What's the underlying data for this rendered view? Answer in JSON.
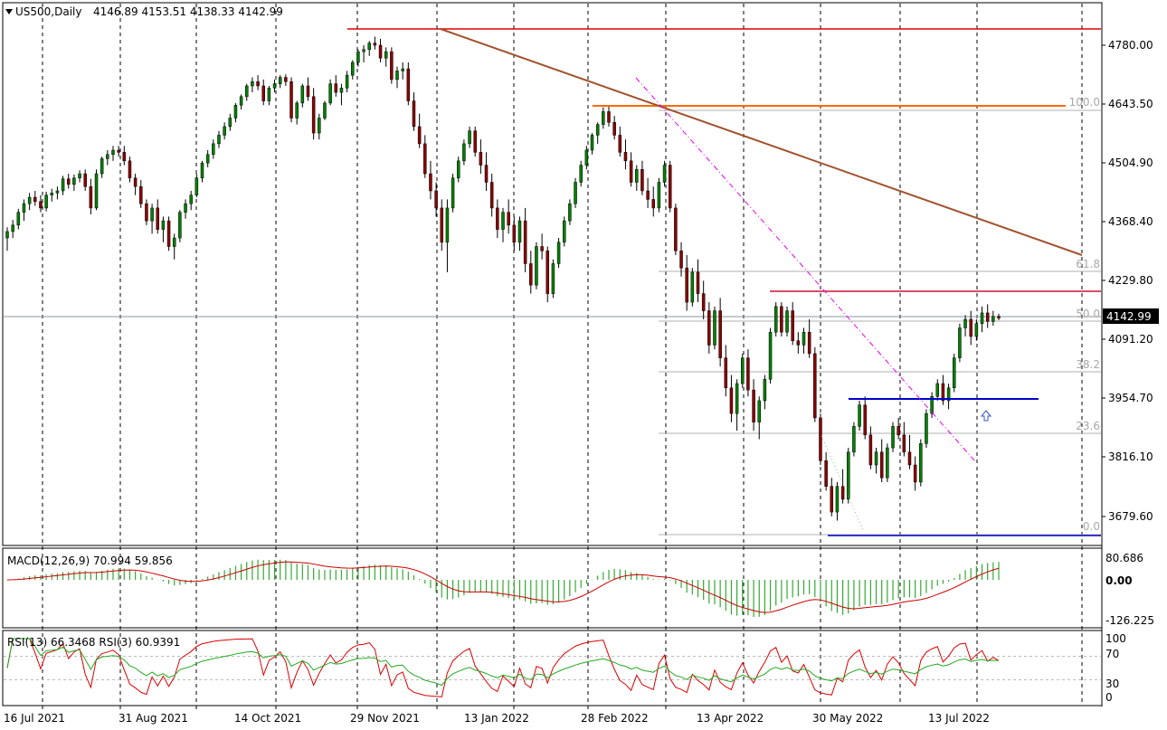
{
  "header": {
    "symbol": "US500,Daily",
    "ohlc": "4146.89 4153.51 4138.33 4142.99"
  },
  "price_axis": {
    "ticks": [
      "4780.00",
      "4643.50",
      "4504.90",
      "4368.40",
      "4229.80",
      "4091.20",
      "3954.70",
      "3816.10",
      "3679.60"
    ],
    "current_price": "4142.99"
  },
  "time_axis": {
    "labels": [
      "16 Jul 2021",
      "31 Aug 2021",
      "14 Oct 2021",
      "29 Nov 2021",
      "13 Jan 2022",
      "28 Feb 2022",
      "13 Apr 2022",
      "30 May 2022",
      "13 Jul 2022"
    ]
  },
  "fibonacci": {
    "levels": [
      "100.0",
      "61.8",
      "50.0",
      "38.2",
      "23.6",
      "0.0"
    ]
  },
  "macd": {
    "title": "MACD(12,26,9) 70.994 59.856",
    "ticks": [
      "80.686",
      "0.00",
      "-126.225"
    ]
  },
  "rsi": {
    "title": "RSI(13) 66.3468  RSI(3) 60.9391",
    "ticks": [
      "100",
      "70",
      "30",
      "0"
    ]
  },
  "colors": {
    "bull_candle": "#008000",
    "bear_candle": "#8b0000",
    "red_line": "#e00000",
    "orange_line": "#ff6a00",
    "trend_line": "#a0522d",
    "blue_line": "#0000cc",
    "magenta_dash": "#ee00ee",
    "macd_hist": "#33aa33",
    "macd_signal": "#cc0000",
    "rsi_fast": "#dd0000",
    "rsi_slow": "#22aa22"
  },
  "chart_data": {
    "type": "candlestick",
    "series": [
      {
        "name": "US500",
        "values": [
          [
            4330,
            4355,
            4300,
            4345
          ],
          [
            4345,
            4372,
            4330,
            4360
          ],
          [
            4360,
            4398,
            4350,
            4390
          ],
          [
            4390,
            4420,
            4370,
            4410
          ],
          [
            4410,
            4435,
            4395,
            4425
          ],
          [
            4425,
            4440,
            4405,
            4415
          ],
          [
            4415,
            4430,
            4390,
            4400
          ],
          [
            4400,
            4438,
            4392,
            4430
          ],
          [
            4430,
            4445,
            4415,
            4435
          ],
          [
            4435,
            4450,
            4420,
            4440
          ],
          [
            4440,
            4475,
            4430,
            4468
          ],
          [
            4468,
            4480,
            4445,
            4455
          ],
          [
            4455,
            4478,
            4440,
            4470
          ],
          [
            4470,
            4488,
            4460,
            4480
          ],
          [
            4480,
            4490,
            4440,
            4450
          ],
          [
            4450,
            4468,
            4385,
            4400
          ],
          [
            4400,
            4490,
            4395,
            4480
          ],
          [
            4480,
            4520,
            4470,
            4515
          ],
          [
            4515,
            4535,
            4500,
            4525
          ],
          [
            4525,
            4545,
            4510,
            4535
          ],
          [
            4535,
            4545,
            4520,
            4530
          ],
          [
            4530,
            4545,
            4500,
            4510
          ],
          [
            4510,
            4520,
            4460,
            4470
          ],
          [
            4470,
            4480,
            4430,
            4450
          ],
          [
            4450,
            4465,
            4400,
            4410
          ],
          [
            4410,
            4420,
            4360,
            4370
          ],
          [
            4370,
            4410,
            4340,
            4400
          ],
          [
            4400,
            4420,
            4340,
            4350
          ],
          [
            4350,
            4380,
            4320,
            4370
          ],
          [
            4370,
            4380,
            4300,
            4310
          ],
          [
            4310,
            4340,
            4280,
            4330
          ],
          [
            4330,
            4395,
            4320,
            4390
          ],
          [
            4390,
            4420,
            4375,
            4410
          ],
          [
            4410,
            4440,
            4395,
            4430
          ],
          [
            4430,
            4480,
            4425,
            4470
          ],
          [
            4470,
            4510,
            4460,
            4505
          ],
          [
            4505,
            4535,
            4495,
            4525
          ],
          [
            4525,
            4560,
            4515,
            4550
          ],
          [
            4550,
            4580,
            4540,
            4570
          ],
          [
            4570,
            4600,
            4560,
            4590
          ],
          [
            4590,
            4620,
            4580,
            4610
          ],
          [
            4610,
            4645,
            4600,
            4640
          ],
          [
            4640,
            4665,
            4630,
            4660
          ],
          [
            4660,
            4690,
            4650,
            4685
          ],
          [
            4685,
            4705,
            4670,
            4695
          ],
          [
            4695,
            4710,
            4675,
            4685
          ],
          [
            4685,
            4700,
            4640,
            4650
          ],
          [
            4650,
            4685,
            4640,
            4680
          ],
          [
            4680,
            4700,
            4670,
            4690
          ],
          [
            4690,
            4710,
            4680,
            4705
          ],
          [
            4705,
            4712,
            4685,
            4695
          ],
          [
            4695,
            4705,
            4600,
            4610
          ],
          [
            4610,
            4650,
            4595,
            4645
          ],
          [
            4645,
            4690,
            4635,
            4685
          ],
          [
            4685,
            4705,
            4650,
            4660
          ],
          [
            4660,
            4680,
            4560,
            4575
          ],
          [
            4575,
            4620,
            4560,
            4610
          ],
          [
            4610,
            4650,
            4605,
            4645
          ],
          [
            4645,
            4700,
            4640,
            4690
          ],
          [
            4690,
            4710,
            4660,
            4670
          ],
          [
            4670,
            4690,
            4640,
            4680
          ],
          [
            4680,
            4720,
            4670,
            4710
          ],
          [
            4710,
            4745,
            4700,
            4740
          ],
          [
            4740,
            4770,
            4730,
            4765
          ],
          [
            4765,
            4780,
            4740,
            4770
          ],
          [
            4770,
            4790,
            4755,
            4785
          ],
          [
            4785,
            4800,
            4770,
            4780
          ],
          [
            4780,
            4795,
            4740,
            4750
          ],
          [
            4750,
            4775,
            4730,
            4765
          ],
          [
            4765,
            4775,
            4690,
            4700
          ],
          [
            4700,
            4730,
            4680,
            4720
          ],
          [
            4720,
            4740,
            4700,
            4725
          ],
          [
            4725,
            4740,
            4640,
            4650
          ],
          [
            4650,
            4670,
            4580,
            4590
          ],
          [
            4590,
            4620,
            4540,
            4550
          ],
          [
            4550,
            4570,
            4470,
            4480
          ],
          [
            4480,
            4510,
            4420,
            4440
          ],
          [
            4440,
            4460,
            4380,
            4400
          ],
          [
            4400,
            4420,
            4300,
            4320
          ],
          [
            4320,
            4420,
            4250,
            4400
          ],
          [
            4400,
            4480,
            4390,
            4470
          ],
          [
            4470,
            4520,
            4460,
            4510
          ],
          [
            4510,
            4560,
            4500,
            4550
          ],
          [
            4550,
            4590,
            4540,
            4580
          ],
          [
            4580,
            4590,
            4520,
            4530
          ],
          [
            4530,
            4560,
            4480,
            4500
          ],
          [
            4500,
            4530,
            4440,
            4460
          ],
          [
            4460,
            4480,
            4380,
            4400
          ],
          [
            4400,
            4420,
            4330,
            4350
          ],
          [
            4350,
            4400,
            4320,
            4390
          ],
          [
            4390,
            4420,
            4340,
            4360
          ],
          [
            4360,
            4380,
            4300,
            4320
          ],
          [
            4320,
            4380,
            4300,
            4370
          ],
          [
            4370,
            4400,
            4250,
            4270
          ],
          [
            4270,
            4300,
            4200,
            4220
          ],
          [
            4220,
            4320,
            4210,
            4310
          ],
          [
            4310,
            4340,
            4280,
            4300
          ],
          [
            4300,
            4310,
            4180,
            4200
          ],
          [
            4200,
            4280,
            4190,
            4270
          ],
          [
            4270,
            4330,
            4260,
            4320
          ],
          [
            4320,
            4380,
            4310,
            4370
          ],
          [
            4370,
            4420,
            4360,
            4410
          ],
          [
            4410,
            4470,
            4400,
            4460
          ],
          [
            4460,
            4510,
            4450,
            4500
          ],
          [
            4500,
            4545,
            4490,
            4535
          ],
          [
            4535,
            4575,
            4525,
            4570
          ],
          [
            4570,
            4600,
            4550,
            4595
          ],
          [
            4595,
            4635,
            4585,
            4625
          ],
          [
            4625,
            4637,
            4590,
            4600
          ],
          [
            4600,
            4615,
            4560,
            4570
          ],
          [
            4570,
            4590,
            4520,
            4530
          ],
          [
            4530,
            4560,
            4490,
            4510
          ],
          [
            4510,
            4530,
            4450,
            4460
          ],
          [
            4460,
            4500,
            4440,
            4490
          ],
          [
            4490,
            4510,
            4430,
            4440
          ],
          [
            4440,
            4470,
            4400,
            4420
          ],
          [
            4420,
            4450,
            4380,
            4400
          ],
          [
            4400,
            4470,
            4390,
            4460
          ],
          [
            4460,
            4510,
            4450,
            4500
          ],
          [
            4500,
            4510,
            4390,
            4400
          ],
          [
            4400,
            4410,
            4290,
            4300
          ],
          [
            4300,
            4320,
            4240,
            4260
          ],
          [
            4260,
            4290,
            4160,
            4180
          ],
          [
            4180,
            4260,
            4170,
            4250
          ],
          [
            4250,
            4280,
            4180,
            4200
          ],
          [
            4200,
            4230,
            4140,
            4160
          ],
          [
            4160,
            4180,
            4060,
            4080
          ],
          [
            4080,
            4170,
            4070,
            4160
          ],
          [
            4160,
            4190,
            4030,
            4050
          ],
          [
            4050,
            4080,
            3960,
            3980
          ],
          [
            3980,
            4010,
            3900,
            3920
          ],
          [
            3920,
            4000,
            3880,
            3990
          ],
          [
            3990,
            4060,
            3980,
            4050
          ],
          [
            4050,
            4070,
            3960,
            3975
          ],
          [
            3975,
            4000,
            3880,
            3900
          ],
          [
            3900,
            3960,
            3860,
            3950
          ],
          [
            3950,
            4010,
            3930,
            4000
          ],
          [
            4000,
            4120,
            3990,
            4110
          ],
          [
            4110,
            4180,
            4100,
            4170
          ],
          [
            4170,
            4180,
            4100,
            4110
          ],
          [
            4110,
            4170,
            4100,
            4160
          ],
          [
            4160,
            4180,
            4080,
            4090
          ],
          [
            4090,
            4110,
            4060,
            4080
          ],
          [
            4080,
            4120,
            4060,
            4110
          ],
          [
            4110,
            4140,
            4050,
            4060
          ],
          [
            4060,
            4075,
            3900,
            3910
          ],
          [
            3910,
            3920,
            3800,
            3810
          ],
          [
            3810,
            3830,
            3740,
            3750
          ],
          [
            3750,
            3770,
            3680,
            3690
          ],
          [
            3690,
            3760,
            3670,
            3750
          ],
          [
            3750,
            3790,
            3710,
            3720
          ],
          [
            3720,
            3840,
            3710,
            3830
          ],
          [
            3830,
            3900,
            3820,
            3890
          ],
          [
            3890,
            3950,
            3880,
            3940
          ],
          [
            3940,
            3960,
            3860,
            3870
          ],
          [
            3870,
            3890,
            3790,
            3800
          ],
          [
            3800,
            3840,
            3780,
            3830
          ],
          [
            3830,
            3860,
            3760,
            3770
          ],
          [
            3770,
            3850,
            3760,
            3840
          ],
          [
            3840,
            3900,
            3830,
            3890
          ],
          [
            3890,
            3910,
            3860,
            3870
          ],
          [
            3870,
            3900,
            3820,
            3830
          ],
          [
            3830,
            3870,
            3790,
            3800
          ],
          [
            3800,
            3820,
            3740,
            3760
          ],
          [
            3760,
            3860,
            3750,
            3850
          ],
          [
            3850,
            3930,
            3840,
            3920
          ],
          [
            3920,
            3970,
            3910,
            3960
          ],
          [
            3960,
            4000,
            3950,
            3990
          ],
          [
            3990,
            4010,
            3940,
            3950
          ],
          [
            3950,
            3990,
            3930,
            3980
          ],
          [
            3980,
            4060,
            3970,
            4050
          ],
          [
            4050,
            4130,
            4040,
            4120
          ],
          [
            4120,
            4150,
            4100,
            4140
          ],
          [
            4140,
            4160,
            4080,
            4100
          ],
          [
            4100,
            4140,
            4090,
            4130
          ],
          [
            4130,
            4170,
            4110,
            4155
          ],
          [
            4155,
            4175,
            4120,
            4135
          ],
          [
            4135,
            4160,
            4125,
            4147
          ],
          [
            4147,
            4153,
            4138,
            4143
          ]
        ]
      }
    ]
  }
}
